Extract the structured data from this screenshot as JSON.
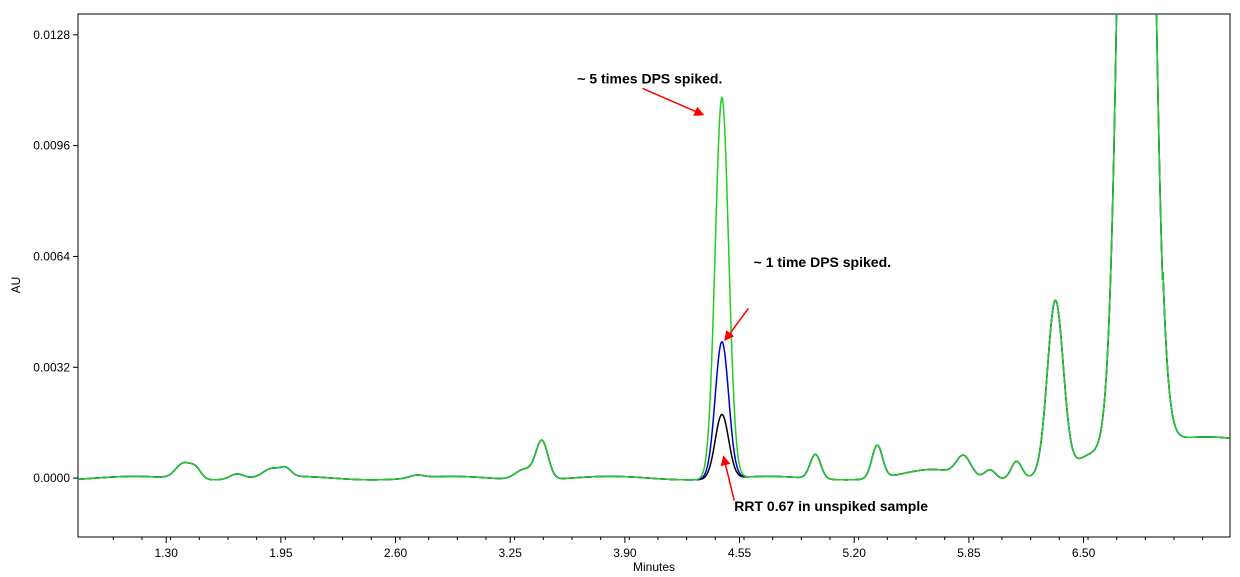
{
  "chart_data": {
    "type": "line",
    "title": "",
    "xlabel": "Minutes",
    "ylabel": "AU",
    "xlim": [
      0.8,
      7.33
    ],
    "ylim": [
      -0.0017,
      0.0134
    ],
    "x_ticks": [
      1.3,
      1.95,
      2.6,
      3.25,
      3.9,
      4.55,
      5.2,
      5.85,
      6.5
    ],
    "x_tick_labels": [
      "1.30",
      "1.95",
      "2.60",
      "3.25",
      "3.90",
      "4.55",
      "5.20",
      "5.85",
      "6.50"
    ],
    "y_ticks": [
      0.0,
      0.0032,
      0.0064,
      0.0096,
      0.0128
    ],
    "y_tick_labels": [
      "0.0000",
      "0.0032",
      "0.0064",
      "0.0096",
      "0.0128"
    ],
    "grid": false,
    "legend": "none",
    "series": [
      {
        "color": "#000000",
        "spiked_peak": 0.00185
      },
      {
        "color": "#0000cc",
        "spiked_peak": 0.00395
      },
      {
        "color": "#22cc22",
        "spiked_peak": 0.011
      }
    ],
    "baseline_features": [
      {
        "x": 1.4,
        "y": 0.00045,
        "w": 0.045
      },
      {
        "x": 1.47,
        "y": 0.00025,
        "w": 0.03
      },
      {
        "x": 1.7,
        "y": 0.00015,
        "w": 0.04
      },
      {
        "x": 1.9,
        "y": 0.00025,
        "w": 0.05
      },
      {
        "x": 1.98,
        "y": 0.0002,
        "w": 0.03
      },
      {
        "x": 2.72,
        "y": 8e-05,
        "w": 0.04
      },
      {
        "x": 3.33,
        "y": 0.0003,
        "w": 0.05
      },
      {
        "x": 3.43,
        "y": 0.0011,
        "w": 0.035
      },
      {
        "x": 4.98,
        "y": 0.0007,
        "w": 0.03
      },
      {
        "x": 5.33,
        "y": 0.00095,
        "w": 0.03
      },
      {
        "x": 5.65,
        "y": 0.0002,
        "w": 0.15
      },
      {
        "x": 5.82,
        "y": 0.00055,
        "w": 0.04
      },
      {
        "x": 5.97,
        "y": 0.00025,
        "w": 0.03
      },
      {
        "x": 6.12,
        "y": 0.0005,
        "w": 0.03
      },
      {
        "x": 6.34,
        "y": 0.005,
        "w": 0.045
      },
      {
        "x": 6.54,
        "y": 0.0004,
        "w": 0.08
      },
      {
        "x": 6.8,
        "y": 0.048,
        "w": 0.07
      },
      {
        "x": 7.1,
        "y": 0.0006,
        "w": 0.4
      }
    ],
    "spiked_peak_x": 4.45,
    "spiked_peak_width": 0.038,
    "annotations": [
      {
        "text": "~ 5 times DPS spiked.",
        "x": 3.63,
        "y": 0.0114,
        "arrow_from": [
          4.0,
          0.01125
        ],
        "arrow_to": [
          4.34,
          0.0105
        ]
      },
      {
        "text": "~ 1 time DPS spiked.",
        "x": 4.63,
        "y": 0.0061,
        "arrow_from": [
          4.6,
          0.0049
        ],
        "arrow_to": [
          4.47,
          0.004
        ]
      },
      {
        "text": "RRT 0.67 in unspiked sample",
        "x": 4.52,
        "y": -0.00095,
        "arrow_from": [
          4.52,
          -0.00065
        ],
        "arrow_to": [
          4.46,
          0.0006
        ]
      }
    ]
  }
}
